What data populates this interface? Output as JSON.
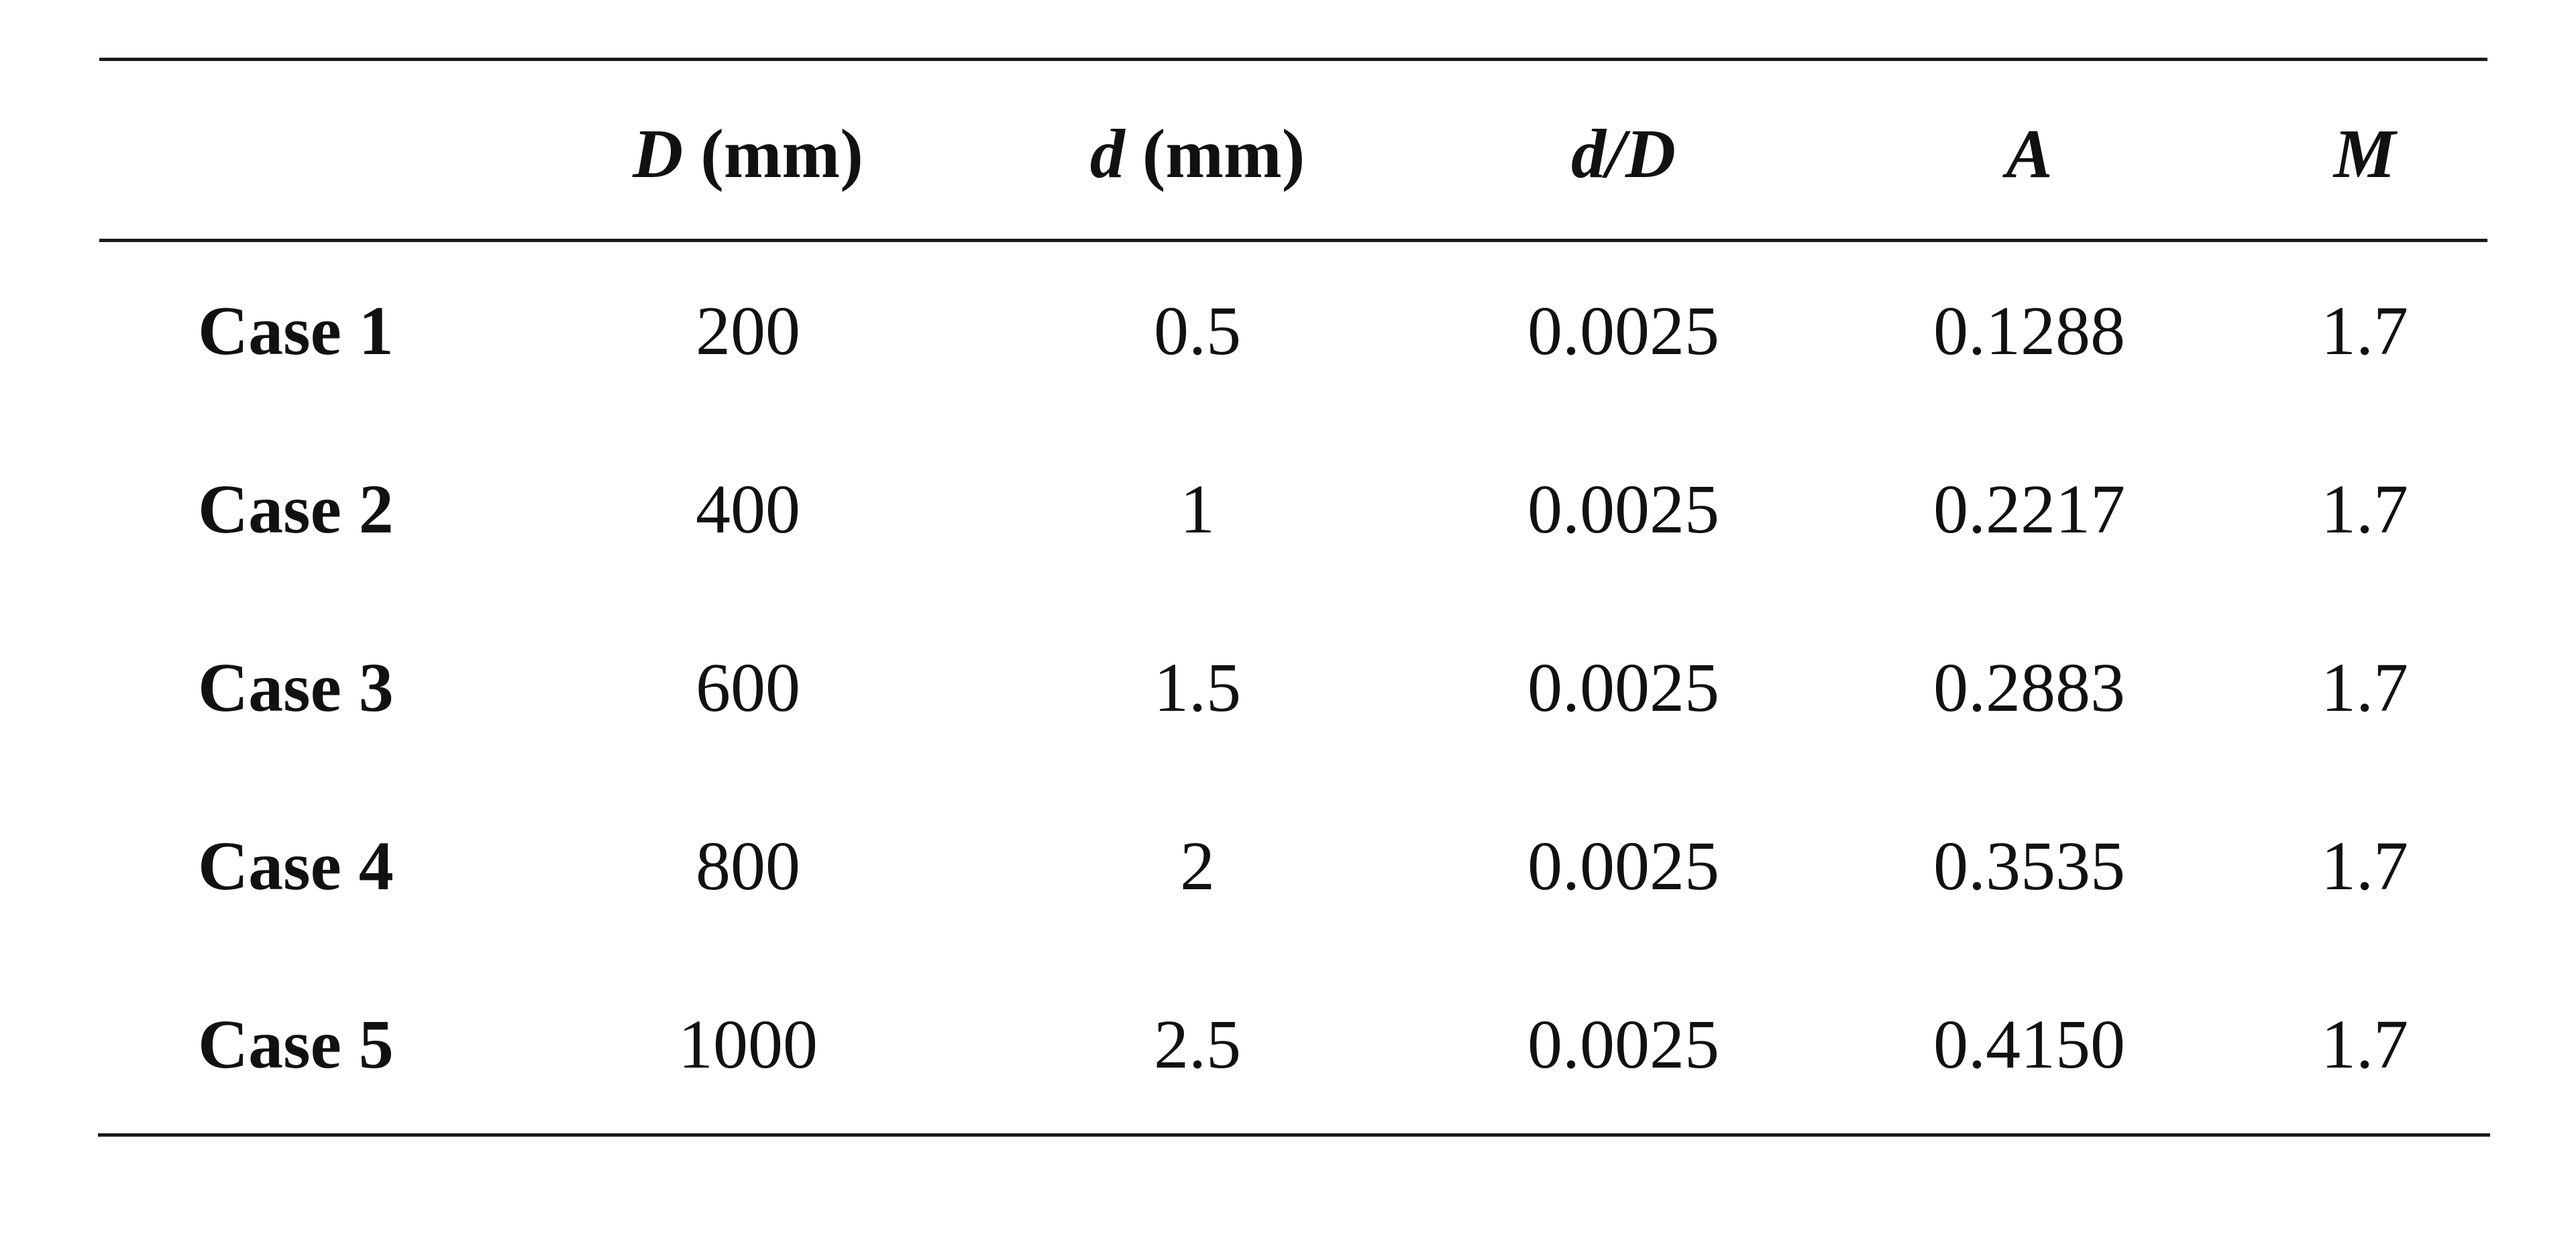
{
  "table": {
    "headers": [
      {
        "var": "D",
        "rest": " (mm)"
      },
      {
        "var": "d",
        "rest": " (mm)"
      },
      {
        "var": "d/D",
        "rest": ""
      },
      {
        "var": "A",
        "rest": ""
      },
      {
        "var": "M",
        "rest": ""
      }
    ],
    "rows": [
      {
        "label": "Case 1",
        "cells": [
          "200",
          "0.5",
          "0.0025",
          "0.1288",
          "1.7"
        ]
      },
      {
        "label": "Case 2",
        "cells": [
          "400",
          "1",
          "0.0025",
          "0.2217",
          "1.7"
        ]
      },
      {
        "label": "Case 3",
        "cells": [
          "600",
          "1.5",
          "0.0025",
          "0.2883",
          "1.7"
        ]
      },
      {
        "label": "Case 4",
        "cells": [
          "800",
          "2",
          "0.0025",
          "0.3535",
          "1.7"
        ]
      },
      {
        "label": "Case 5",
        "cells": [
          "1000",
          "2.5",
          "0.0025",
          "0.4150",
          "1.7"
        ]
      }
    ]
  }
}
